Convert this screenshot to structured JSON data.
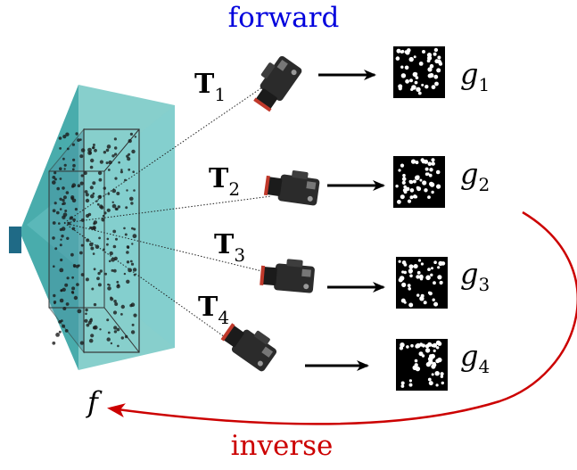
{
  "labels": {
    "forward": "forward",
    "inverse": "inverse",
    "volume": "f"
  },
  "cameras": [
    {
      "T_main": "T",
      "T_sub": "1",
      "g_main": "g",
      "g_sub": "1"
    },
    {
      "T_main": "T",
      "T_sub": "2",
      "g_main": "g",
      "g_sub": "2"
    },
    {
      "T_main": "T",
      "T_sub": "3",
      "g_main": "g",
      "g_sub": "3"
    },
    {
      "T_main": "T",
      "T_sub": "4",
      "g_main": "g",
      "g_sub": "4"
    }
  ],
  "colors": {
    "forward": "#0000dd",
    "inverse": "#cc0000",
    "volume_fill": "#4fb3b0",
    "volume_dark": "#2e8a8c",
    "emitter": "#1f6a86",
    "particles": "#1a1a1a",
    "image_bg": "#000000",
    "image_dots": "#ffffff"
  },
  "icons": [
    "camera-icon",
    "arrow-right-icon",
    "particle-image",
    "inverse-arrow-icon"
  ]
}
